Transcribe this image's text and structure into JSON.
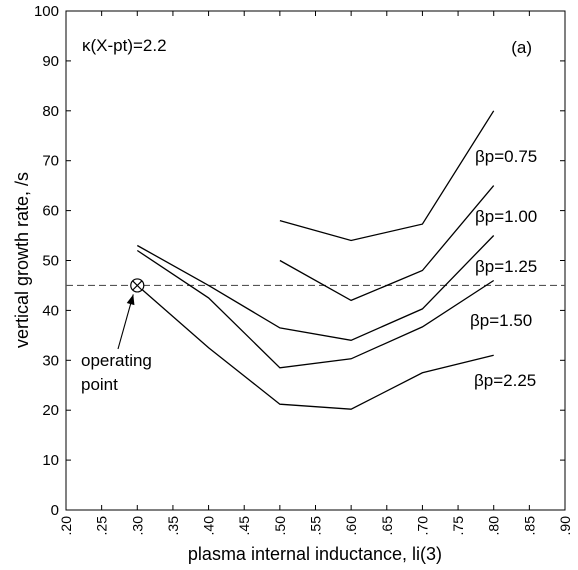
{
  "chart_data": {
    "type": "line",
    "xlabel": "plasma internal inductance, li(3)",
    "ylabel": "vertical growth rate, /s",
    "xlim": [
      0.2,
      0.9
    ],
    "ylim": [
      0,
      100
    ],
    "x_ticks": [
      ".20",
      ".25",
      ".30",
      ".35",
      ".40",
      ".45",
      ".50",
      ".55",
      ".60",
      ".65",
      ".70",
      ".75",
      ".80",
      ".85",
      ".90"
    ],
    "y_ticks": [
      "0",
      "10",
      "20",
      "30",
      "40",
      "50",
      "60",
      "70",
      "80",
      "90",
      "100"
    ],
    "grid": false,
    "series": [
      {
        "name": "βp=0.75",
        "x": [
          0.5,
          0.6,
          0.7,
          0.8
        ],
        "y": [
          58,
          54,
          57.3,
          80
        ]
      },
      {
        "name": "βp=1.00",
        "x": [
          0.5,
          0.6,
          0.7,
          0.8
        ],
        "y": [
          50,
          42,
          48,
          65
        ]
      },
      {
        "name": "βp=1.25",
        "x": [
          0.3,
          0.4,
          0.5,
          0.6,
          0.7,
          0.8
        ],
        "y": [
          53,
          45,
          36.5,
          34,
          40.3,
          55
        ]
      },
      {
        "name": "βp=1.50",
        "x": [
          0.3,
          0.4,
          0.5,
          0.6,
          0.7,
          0.8
        ],
        "y": [
          52,
          42.5,
          28.5,
          30.3,
          36.7,
          46
        ]
      },
      {
        "name": "βp=2.25",
        "x": [
          0.3,
          0.4,
          0.5,
          0.6,
          0.7,
          0.8
        ],
        "y": [
          45,
          32.5,
          21.2,
          20.2,
          27.5,
          31
        ]
      }
    ],
    "reference_line": {
      "y": 45,
      "style": "dashed"
    },
    "operating_point": {
      "x": 0.3,
      "y": 45,
      "label_line1": "operating",
      "label_line2": "point"
    },
    "annotations": {
      "kappa": "κ(X-pt)=2.2",
      "panel": "(a)"
    }
  }
}
